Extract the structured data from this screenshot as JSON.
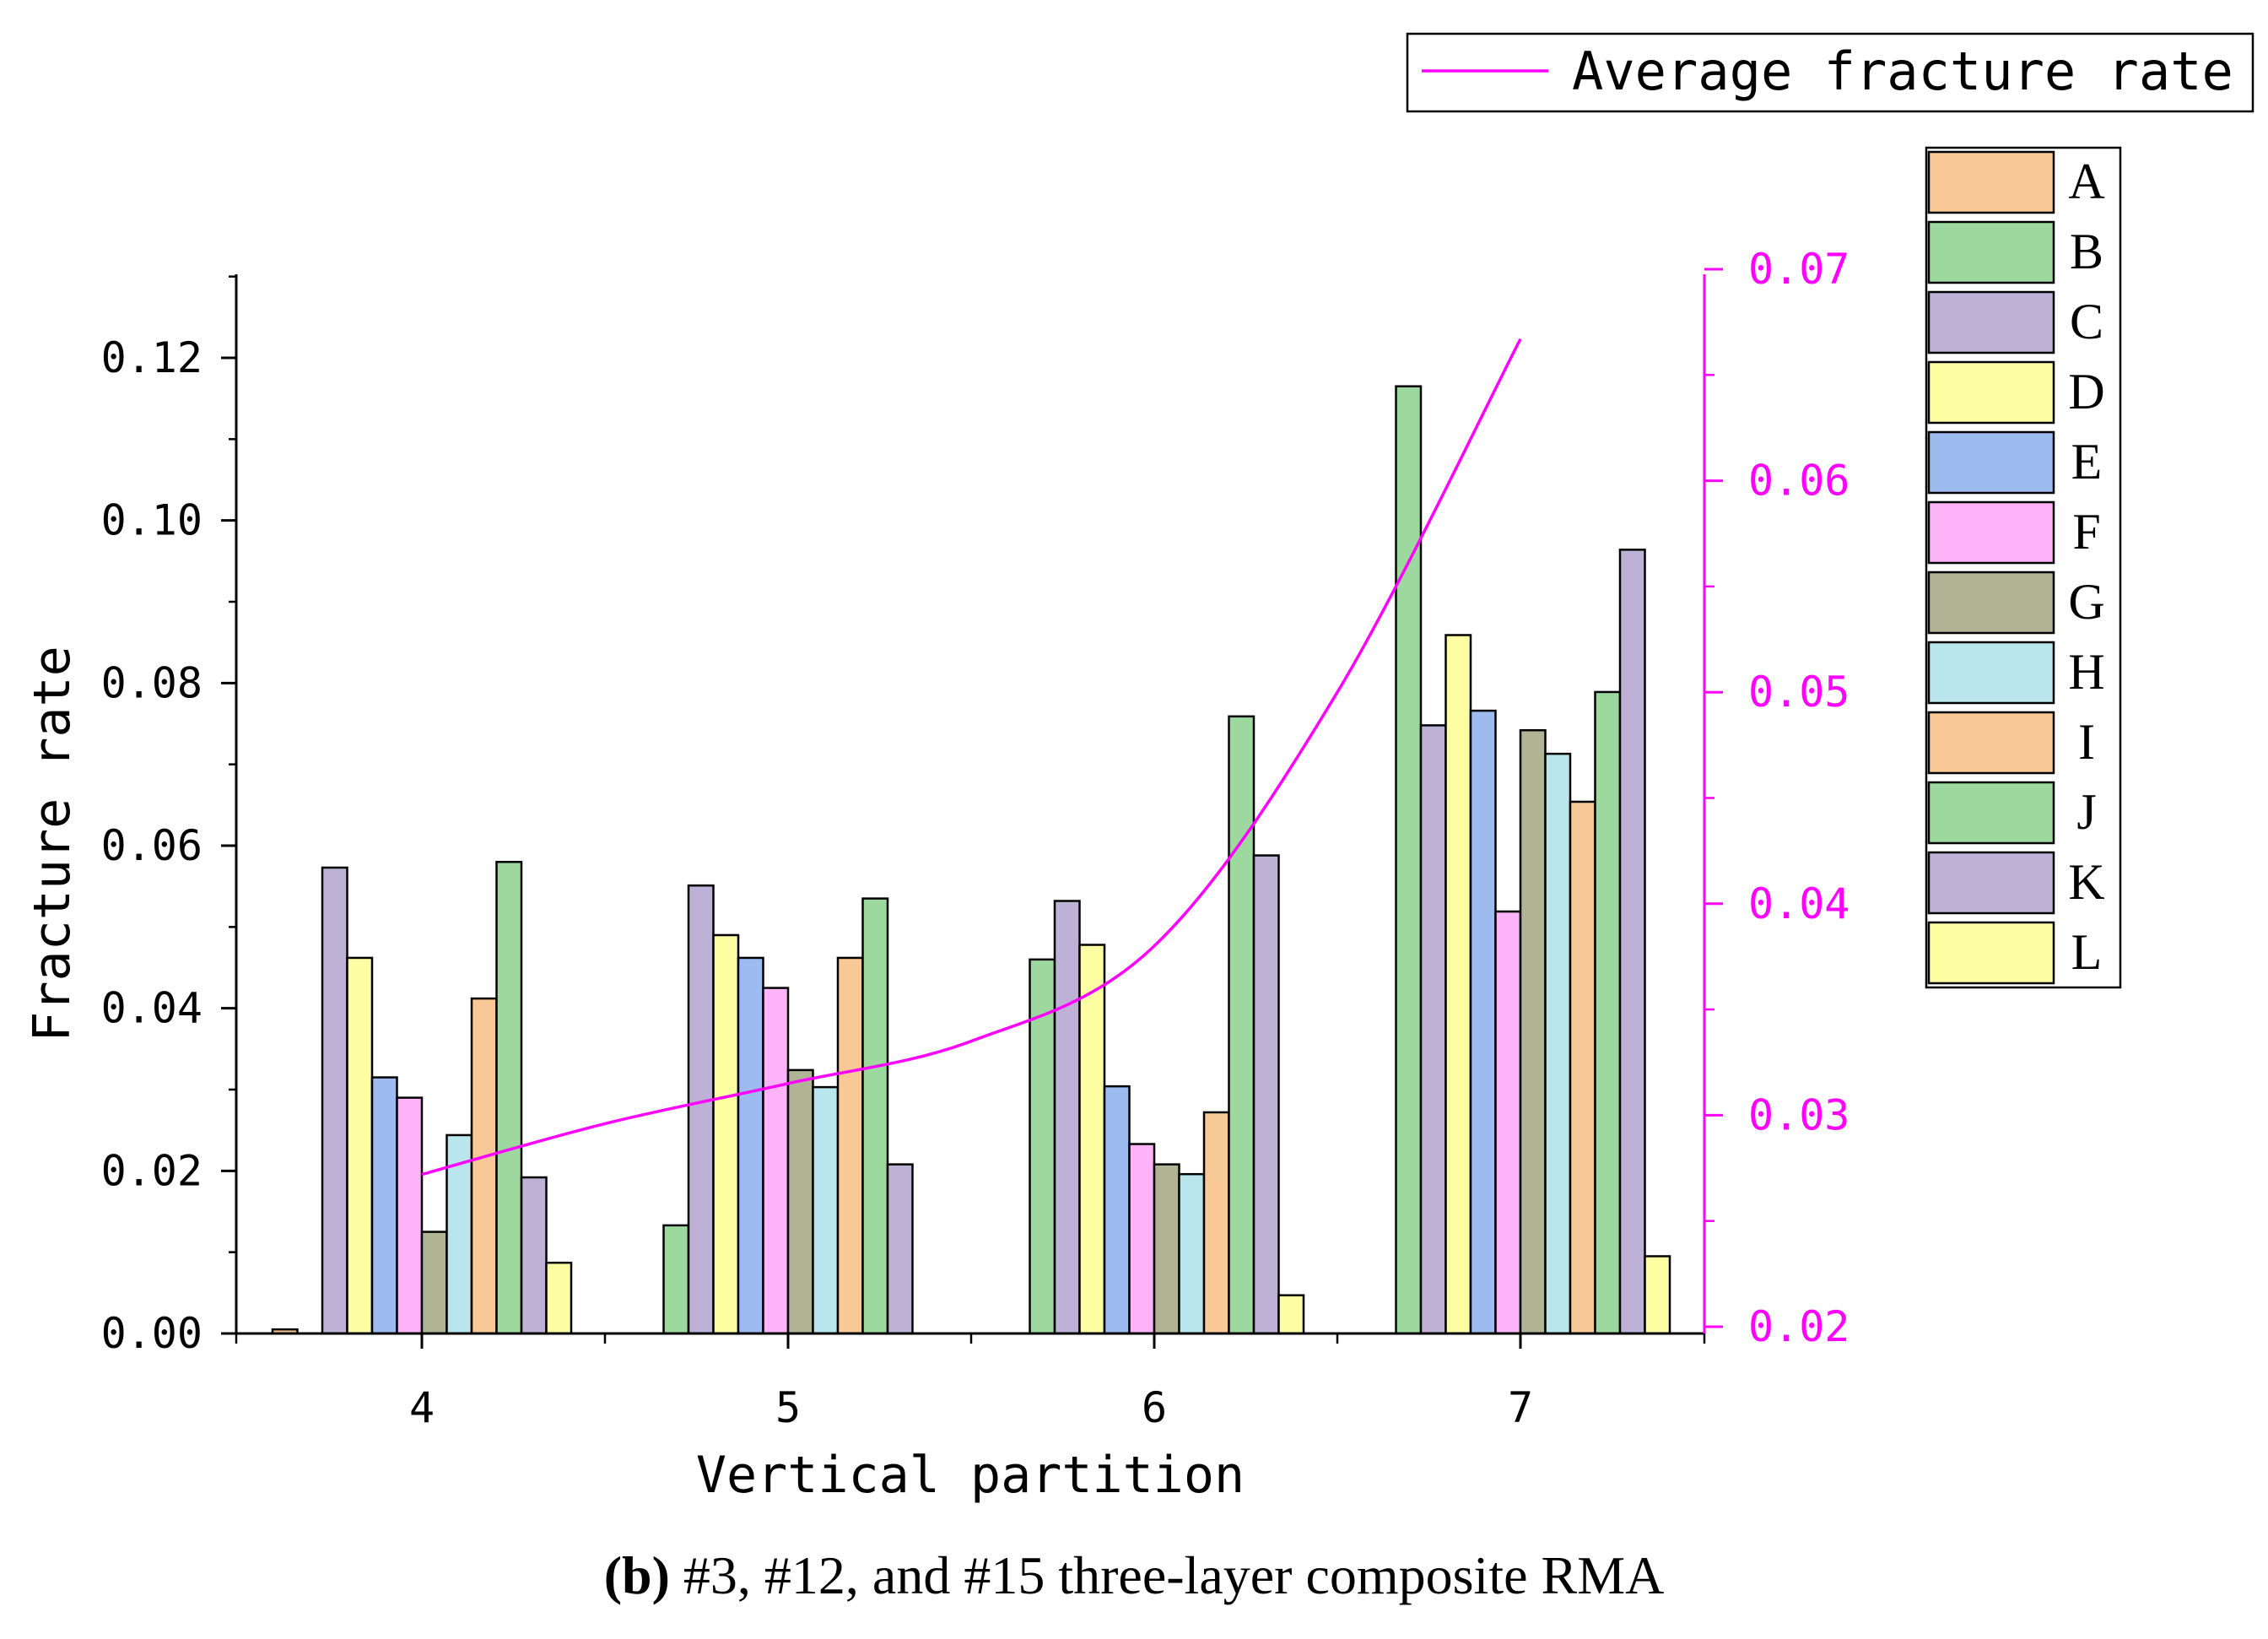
{
  "caption": {
    "label": "(b)",
    "text": " #3, #12, and #15 three-layer composite RMA"
  },
  "chart_data": {
    "type": "bar",
    "xlabel": "Vertical partition",
    "ylabel": "Fracture rate",
    "categories": [
      "4",
      "5",
      "6",
      "7"
    ],
    "ylim": [
      0,
      0.13
    ],
    "yticks": [
      "0.00",
      "0.02",
      "0.04",
      "0.06",
      "0.08",
      "0.10",
      "0.12"
    ],
    "y2lim": [
      0.02,
      0.07
    ],
    "y2ticks": [
      "0.02",
      "0.03",
      "0.04",
      "0.05",
      "0.06",
      "0.07"
    ],
    "series": [
      {
        "name": "A",
        "color": "#F9C897",
        "values": [
          0.0005,
          0.0,
          0.0,
          0.0
        ]
      },
      {
        "name": "B",
        "color": "#9DD89F",
        "values": [
          0.0,
          0.0133,
          0.046,
          0.1165
        ]
      },
      {
        "name": "C",
        "color": "#BDB1D6",
        "values": [
          0.0573,
          0.0551,
          0.0532,
          0.0748
        ]
      },
      {
        "name": "D",
        "color": "#FEFEA2",
        "values": [
          0.0462,
          0.049,
          0.0478,
          0.0859
        ]
      },
      {
        "name": "E",
        "color": "#9EBBF0",
        "values": [
          0.0315,
          0.0462,
          0.0304,
          0.0766
        ]
      },
      {
        "name": "F",
        "color": "#FDB3F7",
        "values": [
          0.029,
          0.0425,
          0.0233,
          0.0519
        ]
      },
      {
        "name": "G",
        "color": "#B0B494",
        "values": [
          0.0125,
          0.0324,
          0.0208,
          0.0742
        ]
      },
      {
        "name": "H",
        "color": "#B9E6EC",
        "values": [
          0.0244,
          0.0303,
          0.0196,
          0.0713
        ]
      },
      {
        "name": "I",
        "color": "#F9C897",
        "values": [
          0.0412,
          0.0462,
          0.0272,
          0.0654
        ]
      },
      {
        "name": "J",
        "color": "#9DD89F",
        "values": [
          0.058,
          0.0535,
          0.0759,
          0.0789
        ]
      },
      {
        "name": "K",
        "color": "#BDB1D6",
        "values": [
          0.0192,
          0.0208,
          0.0588,
          0.0964
        ]
      },
      {
        "name": "L",
        "color": "#FEFEA2",
        "values": [
          0.0087,
          0.0,
          0.0047,
          0.0095
        ]
      }
    ],
    "line": {
      "name": "Average fracture rate",
      "axis": "right",
      "color": "#FF00FF",
      "x": [
        4,
        4.5,
        5,
        5.5,
        6,
        6.5,
        7
      ],
      "y": [
        0.0272,
        0.0296,
        0.0315,
        0.0335,
        0.038,
        0.05,
        0.0667
      ]
    },
    "legend": {
      "line_position": "top-right",
      "bars_position": "right"
    }
  }
}
